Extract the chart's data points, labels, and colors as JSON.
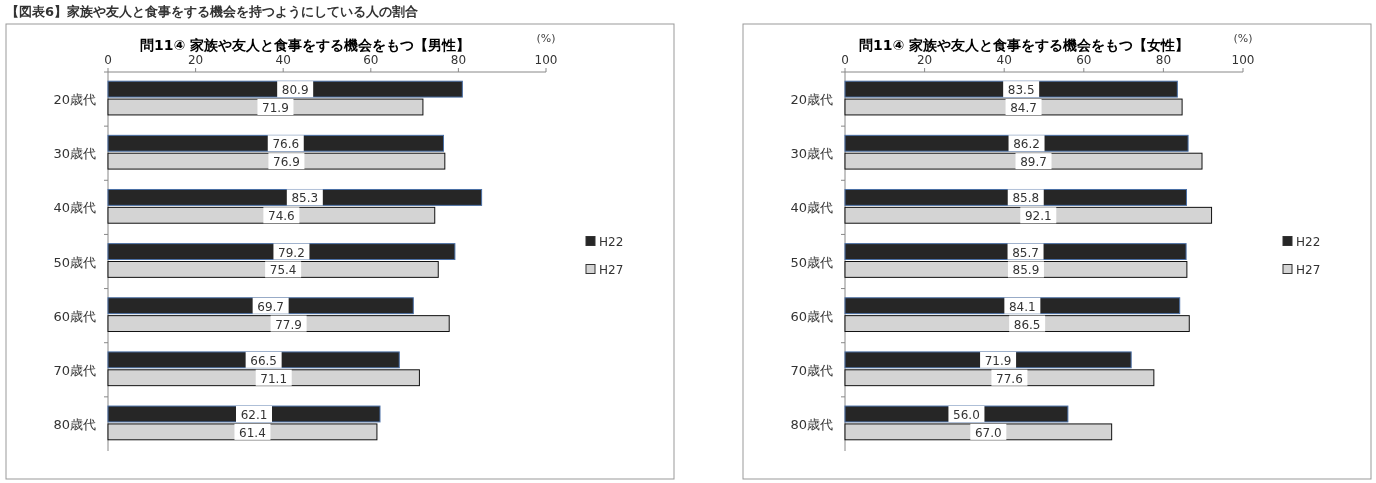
{
  "chart_data": [
    {
      "type": "bar",
      "orientation": "horizontal",
      "title": "問11④  家族や友人と食事をする機会をもつ【男性】",
      "xlabel": "(%)",
      "annotations": [
        "【図表6】家族や友人と食事をする機会を持つようにしている人の割合"
      ],
      "categories": [
        "20歳代",
        "30歳代",
        "40歳代",
        "50歳代",
        "60歳代",
        "70歳代",
        "80歳代"
      ],
      "xlim": [
        0,
        100
      ],
      "xticks": [
        0,
        20,
        40,
        60,
        80,
        100
      ],
      "legend": "right",
      "data_labels": true,
      "series": [
        {
          "name": "H22",
          "color": "#262626",
          "values": [
            80.9,
            76.6,
            85.3,
            79.2,
            69.7,
            66.5,
            62.1
          ]
        },
        {
          "name": "H27",
          "color": "#d4d4d4",
          "values": [
            71.9,
            76.9,
            74.6,
            75.4,
            77.9,
            71.1,
            61.4
          ]
        }
      ]
    },
    {
      "type": "bar",
      "orientation": "horizontal",
      "title": "問11④  家族や友人と食事をする機会をもつ【女性】",
      "xlabel": "(%)",
      "categories": [
        "20歳代",
        "30歳代",
        "40歳代",
        "50歳代",
        "60歳代",
        "70歳代",
        "80歳代"
      ],
      "xlim": [
        0,
        100
      ],
      "xticks": [
        0,
        20,
        40,
        60,
        80,
        100
      ],
      "legend": "right",
      "series": [
        {
          "name": "H22",
          "color": "#262626",
          "values": [
            83.5,
            86.2,
            85.8,
            85.7,
            84.1,
            71.9,
            56.0
          ],
          "value_labels": [
            "83.5",
            "86.2",
            "85.8",
            "85.7",
            "84.1",
            "71.9",
            "56.0"
          ]
        },
        {
          "name": "H27",
          "color": "#d4d4d4",
          "values": [
            84.7,
            89.7,
            92.1,
            85.9,
            86.5,
            77.6,
            67.0
          ],
          "value_labels": [
            "84.7",
            "89.7",
            "92.1",
            "85.9",
            "86.5",
            "77.6",
            "67.0"
          ]
        }
      ]
    }
  ]
}
